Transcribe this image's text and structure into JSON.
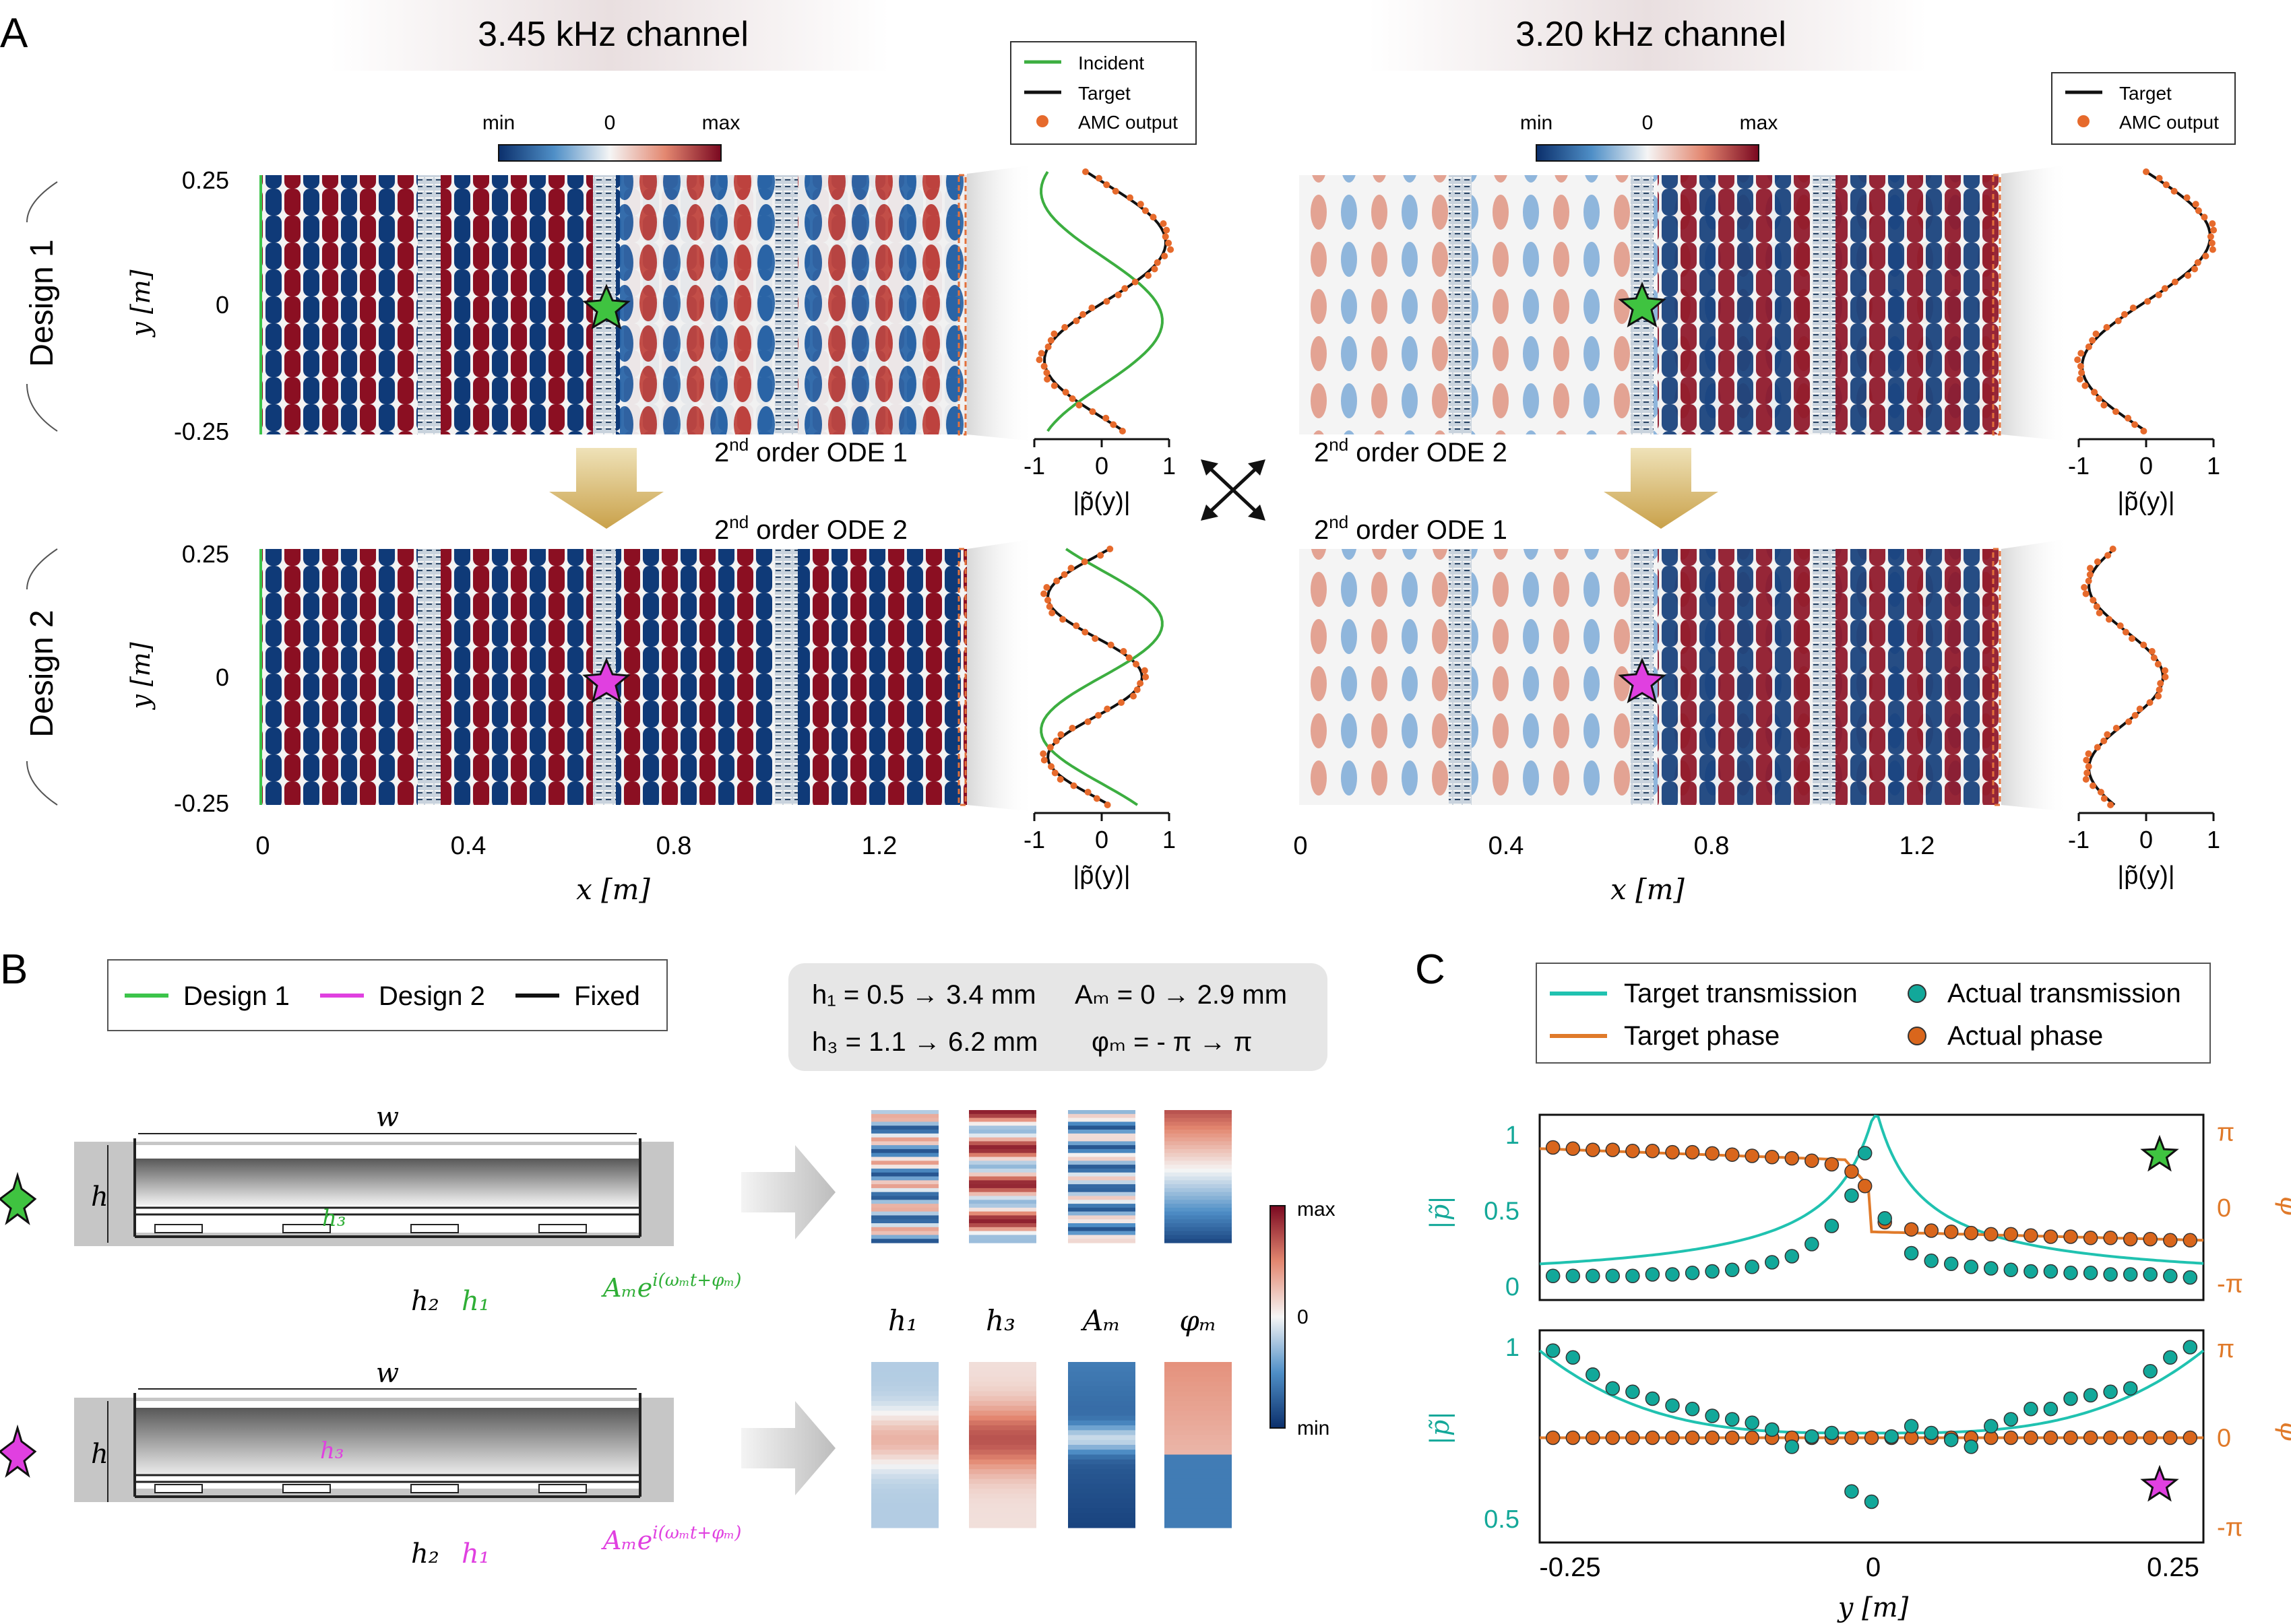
{
  "panels": {
    "A": "A",
    "B": "B",
    "C": "C"
  },
  "panelA": {
    "channel_left": "3.45 kHz channel",
    "channel_right": "3.20 kHz channel",
    "colorbar": {
      "min": "min",
      "zero": "0",
      "max": "max"
    },
    "design1": "Design 1",
    "design2": "Design 2",
    "ylabel": "y [m]",
    "xlabel": "x [m]",
    "yticks": [
      "0.25",
      "0",
      "-0.25"
    ],
    "xticks": [
      "0",
      "0.4",
      "0.8",
      "1.2"
    ],
    "profile_xlabel": "|p̃(y)|",
    "profile_ticks": [
      "-1",
      "0",
      "1"
    ],
    "legend_left": [
      "Incident",
      "Target",
      "AMC output"
    ],
    "legend_right": [
      "Target",
      "AMC output"
    ],
    "ode_top_left": {
      "base": "2",
      "sup": "nd",
      "rest": " order ODE 1"
    },
    "ode_bottom_left": {
      "base": "2",
      "sup": "nd",
      "rest": " order ODE 2"
    },
    "ode_top_right": {
      "base": "2",
      "sup": "nd",
      "rest": " order ODE 2"
    },
    "ode_bottom_right": {
      "base": "2",
      "sup": "nd",
      "rest": " order ODE 1"
    }
  },
  "panelB": {
    "legend": [
      "Design 1",
      "Design 2",
      "Fixed"
    ],
    "ranges": [
      "h₁ = 0.5 → 3.4 mm",
      "Aₘ = 0 → 2.9 mm",
      "h₃ = 1.1 → 6.2 mm",
      "φₘ = - π → π"
    ],
    "labels": {
      "w": "w",
      "h": "h",
      "h1": "h₁",
      "h2": "h₂",
      "h3": "h₃",
      "am": "Aₘe",
      "am_sup": "i(ωₘt+φₘ)"
    },
    "param_labels": [
      "h₁",
      "h₃",
      "Aₘ",
      "φₘ"
    ],
    "colorbar": {
      "max": "max",
      "zero": "0",
      "min": "min"
    }
  },
  "panelC": {
    "legend": [
      "Target transmission",
      "Actual transmission",
      "Target phase",
      "Actual phase"
    ],
    "ylabel_left": "|p̃|",
    "ylabel_right": "φ",
    "xlabel": "y [m]",
    "xticks": [
      "-0.25",
      "0",
      "0.25"
    ],
    "top_yticks_left": [
      "1",
      "0.5",
      "0"
    ],
    "bottom_yticks_left": [
      "1",
      "0.5"
    ],
    "yticks_right": [
      "π",
      "0",
      "-π"
    ],
    "colors": {
      "teal": "#20c2b0",
      "orange": "#e07a2a",
      "teal_dot": "#12a89a",
      "orange_dot": "#d9661c"
    }
  },
  "chart_data": [
    {
      "type": "scatter",
      "title": "",
      "xlabel": "y [m]",
      "ylabel": "|p̃|",
      "xlim": [
        -0.25,
        0.25
      ],
      "ylim": [
        0,
        1
      ],
      "series": [
        {
          "name": "Actual transmission",
          "x": [
            -0.24,
            -0.225,
            -0.21,
            -0.195,
            -0.18,
            -0.165,
            -0.15,
            -0.135,
            -0.12,
            -0.105,
            -0.09,
            -0.075,
            -0.06,
            -0.045,
            -0.03,
            -0.015,
            -0.005,
            0.01,
            0.03,
            0.045,
            0.06,
            0.075,
            0.09,
            0.105,
            0.12,
            0.135,
            0.15,
            0.165,
            0.18,
            0.195,
            0.21,
            0.225,
            0.24
          ],
          "values": [
            0.07,
            0.07,
            0.07,
            0.07,
            0.07,
            0.08,
            0.08,
            0.09,
            0.1,
            0.11,
            0.13,
            0.16,
            0.2,
            0.28,
            0.4,
            0.6,
            0.88,
            0.45,
            0.22,
            0.17,
            0.15,
            0.13,
            0.12,
            0.11,
            0.1,
            0.1,
            0.09,
            0.09,
            0.08,
            0.08,
            0.08,
            0.07,
            0.06
          ]
        },
        {
          "name": "Actual phase",
          "x": [
            -0.24,
            -0.225,
            -0.21,
            -0.195,
            -0.18,
            -0.165,
            -0.15,
            -0.135,
            -0.12,
            -0.105,
            -0.09,
            -0.075,
            -0.06,
            -0.045,
            -0.03,
            -0.015,
            -0.005,
            0.01,
            0.03,
            0.045,
            0.06,
            0.075,
            0.09,
            0.105,
            0.12,
            0.135,
            0.15,
            0.165,
            0.18,
            0.195,
            0.21,
            0.225,
            0.24
          ],
          "values": [
            2.5,
            2.45,
            2.4,
            2.4,
            2.35,
            2.35,
            2.3,
            2.3,
            2.25,
            2.2,
            2.15,
            2.1,
            2.05,
            1.95,
            1.8,
            1.5,
            0.9,
            -0.6,
            -0.9,
            -0.95,
            -1.0,
            -1.05,
            -1.1,
            -1.1,
            -1.15,
            -1.2,
            -1.2,
            -1.25,
            -1.25,
            -1.3,
            -1.3,
            -1.35,
            -1.35
          ]
        }
      ]
    },
    {
      "type": "scatter",
      "title": "",
      "xlabel": "y [m]",
      "ylabel": "|p̃|",
      "xlim": [
        -0.25,
        0.25
      ],
      "ylim": [
        0.5,
        1
      ],
      "series": [
        {
          "name": "Actual transmission",
          "x": [
            -0.24,
            -0.225,
            -0.21,
            -0.195,
            -0.18,
            -0.165,
            -0.15,
            -0.135,
            -0.12,
            -0.105,
            -0.09,
            -0.075,
            -0.06,
            -0.045,
            -0.03,
            -0.015,
            0.0,
            0.015,
            0.03,
            0.045,
            0.06,
            0.075,
            0.09,
            0.105,
            0.12,
            0.135,
            0.15,
            0.165,
            0.18,
            0.195,
            0.21,
            0.225,
            0.24
          ],
          "values": [
            0.99,
            0.97,
            0.92,
            0.88,
            0.87,
            0.85,
            0.83,
            0.82,
            0.8,
            0.79,
            0.78,
            0.76,
            0.71,
            0.74,
            0.75,
            0.58,
            0.55,
            0.74,
            0.77,
            0.75,
            0.73,
            0.71,
            0.77,
            0.79,
            0.82,
            0.82,
            0.85,
            0.86,
            0.87,
            0.88,
            0.93,
            0.97,
            1.0
          ]
        },
        {
          "name": "Actual phase",
          "x": [
            -0.24,
            -0.225,
            -0.21,
            -0.195,
            -0.18,
            -0.165,
            -0.15,
            -0.135,
            -0.12,
            -0.105,
            -0.09,
            -0.075,
            -0.06,
            -0.045,
            -0.03,
            -0.015,
            0.0,
            0.015,
            0.03,
            0.045,
            0.06,
            0.075,
            0.09,
            0.105,
            0.12,
            0.135,
            0.15,
            0.165,
            0.18,
            0.195,
            0.21,
            0.225,
            0.24
          ],
          "values": [
            0,
            0,
            0,
            0,
            0,
            0,
            0,
            0,
            0,
            0,
            0,
            0,
            0,
            0,
            0,
            0,
            0,
            0,
            0,
            0,
            0,
            0,
            0,
            0,
            0,
            0,
            0,
            0,
            0,
            0,
            0,
            0,
            0
          ]
        }
      ]
    }
  ]
}
